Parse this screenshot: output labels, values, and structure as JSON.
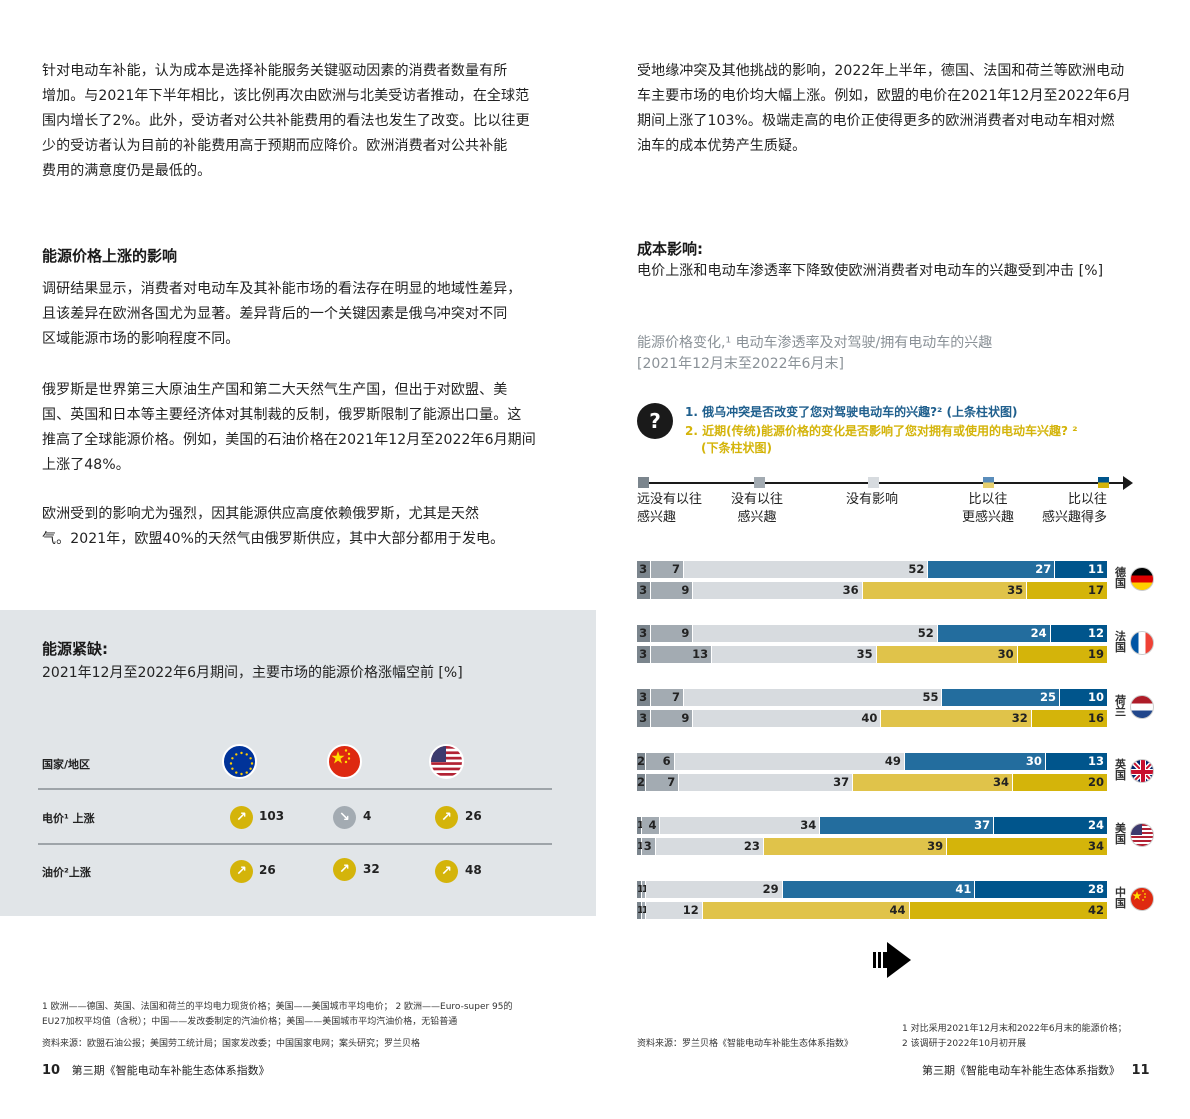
{
  "left_page": {
    "intro_paragraph": [
      "针对电动车补能，认为成本是选择补能服务关键驱动因素的消费者数量有所",
      "增加。与2021年下半年相比，该比例再次由欧洲与北美受访者推动，在全球范",
      "围内增长了2%。此外，受访者对公共补能费用的看法也发生了改变。比以往更",
      "少的受访者认为目前的补能费用高于预期而应降价。欧洲消费者对公共补能",
      "费用的满意度仍是最低的。"
    ],
    "section_heading": "能源价格上涨的影响",
    "paragraph_1": [
      "调研结果显示，消费者对电动车及其补能市场的看法存在明显的地域性差异，",
      "且该差异在欧洲各国尤为显著。差异背后的一个关键因素是俄乌冲突对不同",
      "区域能源市场的影响程度不同。"
    ],
    "paragraph_2": [
      "俄罗斯是世界第三大原油生产国和第二大天然气生产国，但出于对欧盟、美",
      "国、英国和日本等主要经济体对其制裁的反制，俄罗斯限制了能源出口量。这",
      "推高了全球能源价格。例如，美国的石油价格在2021年12月至2022年6月期间",
      "上涨了48%。"
    ],
    "paragraph_3": [
      "欧洲受到的影响尤为强烈，因其能源供应高度依赖俄罗斯，尤其是天然",
      "气。2021年，欧盟40%的天然气由俄罗斯供应，其中大部分都用于发电。"
    ],
    "panel": {
      "title": "能源紧缺:",
      "subtitle": "2021年12月至2022年6月期间，主要市场的能源价格涨幅空前 [%]",
      "header_label": "国家/地区",
      "columns": [
        {
          "region": "EU",
          "flag_icon": "eu-flag-icon"
        },
        {
          "region": "China",
          "flag_icon": "china-flag-icon"
        },
        {
          "region": "USA",
          "flag_icon": "usa-flag-icon"
        }
      ],
      "rows": [
        {
          "label": "电价¹ 上涨",
          "values": [
            {
              "value": "103",
              "direction": "up"
            },
            {
              "value": "4",
              "direction": "down"
            },
            {
              "value": "26",
              "direction": "up"
            }
          ]
        },
        {
          "label": "油价²上涨",
          "values": [
            {
              "value": "26",
              "direction": "up"
            },
            {
              "value": "32",
              "direction": "up"
            },
            {
              "value": "48",
              "direction": "up"
            }
          ]
        }
      ]
    },
    "footnotes": [
      "1 欧洲——德国、英国、法国和荷兰的平均电力现货价格；美国——美国城市平均电价； 2 欧洲——Euro-super 95的",
      "EU27加权平均值（含税）；中国——发改委制定的汽油价格；美国——美国城市平均汽油价格，无铅普通"
    ],
    "source": "资料来源：欧盟石油公报；美国劳工统计局；国家发改委；中国国家电网；案头研究；罗兰贝格",
    "page_number": "10",
    "publication": "第三期《智能电动车补能生态体系指数》"
  },
  "right_page": {
    "intro_paragraph": [
      "受地缘冲突及其他挑战的影响，2022年上半年，德国、法国和荷兰等欧洲电动",
      "车主要市场的电价均大幅上涨。例如，欧盟的电价在2021年12月至2022年6月",
      "期间上涨了103%。极端走高的电价正使得更多的欧洲消费者对电动车相对燃",
      "油车的成本优势产生质疑。"
    ],
    "section_heading": "成本影响:",
    "section_subtitle": "电价上涨和电动车渗透率下降致使欧洲消费者对电动车的兴趣受到冲击 [%]",
    "chart_heading": [
      "能源价格变化,¹ 电动车渗透率及对驾驶/拥有电动车的兴趣",
      "[2021年12月末至2022年6月末]"
    ],
    "question_icon": "question-mark-icon",
    "question_1": "1. 俄乌冲突是否改变了您对驾驶电动车的兴趣?² (上条柱状图)",
    "question_2_line1": "2. 近期(传统)能源价格的变化是否影响了您对拥有或使用的电动车兴趣? ²",
    "question_2_line2": "(下条柱状图)",
    "legend": [
      {
        "label_1": "远没有以往",
        "label_2": "感兴趣",
        "color": "#7b858d"
      },
      {
        "label_1": "没有以往",
        "label_2": "感兴趣",
        "color": "#a3abb2"
      },
      {
        "label_1": "没有影响",
        "label_2": "",
        "color": "#d7dbdf"
      },
      {
        "label_1": "比以往",
        "label_2": "更感兴趣",
        "color_top": "#236d9e",
        "color_bottom": "#e0c34a"
      },
      {
        "label_1": "比以往",
        "label_2": "感兴趣得多",
        "color_top": "#00558c",
        "color_bottom": "#d4b40a"
      }
    ],
    "footnotes": [
      "1 对比采用2021年12月末和2022年6月末的能源价格；",
      "2 该调研于2022年10月初开展"
    ],
    "source": "资料来源：罗兰贝格《智能电动车补能生态体系指数》",
    "page_number": "11",
    "publication": "第三期《智能电动车补能生态体系指数》",
    "next_icon": "next-page-arrow-icon"
  },
  "chart_data": [
    {
      "type": "table",
      "title": "能源紧缺: 2021年12月至2022年6月期间，主要市场的能源价格涨幅空前 [%]",
      "columns": [
        "欧盟",
        "中国",
        "美国"
      ],
      "rows": [
        {
          "label": "电价上涨",
          "values": [
            103,
            -4,
            26
          ]
        },
        {
          "label": "油价上涨",
          "values": [
            26,
            32,
            48
          ]
        }
      ]
    },
    {
      "type": "bar",
      "orientation": "horizontal-stacked",
      "title": "能源价格变化, 电动车渗透率及对驾驶/拥有电动车的兴趣 [2021年12月末至2022年6月末]",
      "categories_legend": [
        "远没有以往感兴趣",
        "没有以往感兴趣",
        "没有影响",
        "比以往更感兴趣",
        "比以往感兴趣得多"
      ],
      "xlim": [
        0,
        100
      ],
      "countries": [
        {
          "name": "德国",
          "flag": "germany-flag-icon",
          "q1": [
            3,
            7,
            52,
            27,
            11
          ],
          "q2": [
            3,
            9,
            36,
            35,
            17
          ]
        },
        {
          "name": "法国",
          "flag": "france-flag-icon",
          "q1": [
            3,
            9,
            52,
            24,
            12
          ],
          "q2": [
            3,
            13,
            35,
            30,
            19
          ]
        },
        {
          "name": "荷兰",
          "flag": "netherlands-flag-icon",
          "q1": [
            3,
            7,
            55,
            25,
            10
          ],
          "q2": [
            3,
            9,
            40,
            32,
            16
          ]
        },
        {
          "name": "英国",
          "flag": "uk-flag-icon",
          "q1": [
            2,
            6,
            49,
            30,
            13
          ],
          "q2": [
            2,
            7,
            37,
            34,
            20
          ]
        },
        {
          "name": "美国",
          "flag": "usa-flag-icon",
          "q1": [
            1,
            4,
            34,
            37,
            24
          ],
          "q2": [
            1,
            3,
            23,
            39,
            34
          ]
        },
        {
          "name": "中国",
          "flag": "china-flag-icon",
          "q1": [
            1,
            1,
            29,
            41,
            28
          ],
          "q2": [
            1,
            1,
            12,
            44,
            42
          ]
        }
      ],
      "series": [
        {
          "name": "Q1 俄乌冲突是否改变了您对驾驶电动车的兴趣 (上条)",
          "colors": [
            "#7b858d",
            "#a3abb2",
            "#d7dbdf",
            "#236d9e",
            "#00558c"
          ]
        },
        {
          "name": "Q2 近期能源价格的变化是否影响了您对拥有或使用的电动车兴趣 (下条)",
          "colors": [
            "#7b858d",
            "#a3abb2",
            "#d7dbdf",
            "#e0c34a",
            "#d4b40a"
          ]
        }
      ]
    }
  ]
}
